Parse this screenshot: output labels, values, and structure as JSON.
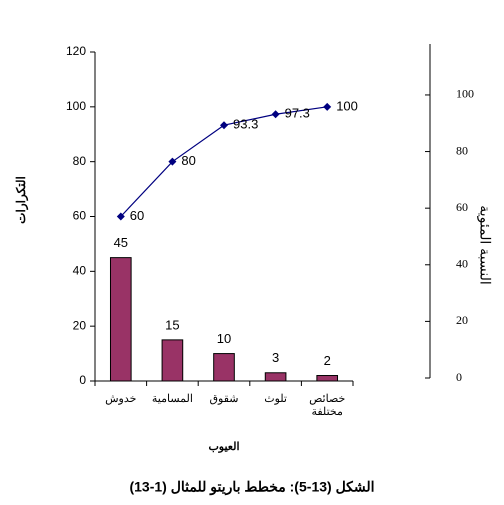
{
  "chart_data": {
    "type": "pareto",
    "caption": "الشكل (13-5): مخطط باريتو للمثال (1-13)",
    "x_label": "العيوب",
    "y_label": "التكرارات",
    "y2_label": "النسبة المئوية",
    "categories": [
      "خدوش",
      "المسامية",
      "شقوق",
      "تلوث",
      "خصائص مختلفة"
    ],
    "series": [
      {
        "type": "bar",
        "color": "#993366",
        "values": [
          45,
          15,
          10,
          3,
          2
        ]
      },
      {
        "type": "line",
        "color": "#000080",
        "values": [
          60,
          80,
          93.3,
          97.3,
          100
        ]
      }
    ],
    "ylim": [
      0,
      120
    ],
    "yticks": [
      0,
      20,
      40,
      60,
      80,
      100,
      120
    ],
    "y2lim": [
      0,
      118
    ],
    "y2ticks": [
      0,
      20,
      40,
      60,
      80,
      100
    ]
  }
}
